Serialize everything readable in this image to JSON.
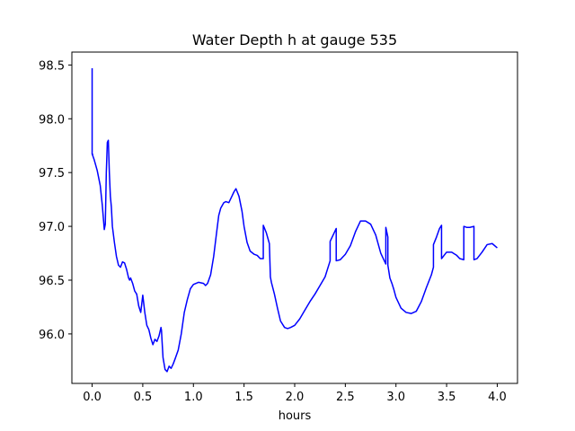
{
  "chart_data": {
    "type": "line",
    "title": "Water Depth h at gauge 535",
    "xlabel": "hours",
    "ylabel": "",
    "xlim": [
      -0.2,
      4.2
    ],
    "ylim": [
      95.54,
      98.62
    ],
    "xticks": [
      0.0,
      0.5,
      1.0,
      1.5,
      2.0,
      2.5,
      3.0,
      3.5,
      4.0
    ],
    "xtick_labels": [
      "0.0",
      "0.5",
      "1.0",
      "1.5",
      "2.0",
      "2.5",
      "3.0",
      "3.5",
      "4.0"
    ],
    "yticks": [
      96.0,
      96.5,
      97.0,
      97.5,
      98.0,
      98.5
    ],
    "ytick_labels": [
      "96.0",
      "96.5",
      "97.0",
      "97.5",
      "98.0",
      "98.5"
    ],
    "grid": false,
    "line_color": "#0000ff",
    "series": [
      {
        "x": [
          0.0,
          0.0,
          0.005,
          0.005,
          0.02,
          0.05,
          0.08,
          0.1,
          0.12,
          0.13,
          0.14,
          0.15,
          0.16,
          0.17,
          0.18,
          0.19,
          0.2,
          0.22,
          0.24,
          0.26,
          0.28,
          0.3,
          0.32,
          0.34,
          0.36,
          0.37,
          0.38,
          0.4,
          0.42,
          0.44,
          0.46,
          0.48,
          0.5,
          0.52,
          0.54,
          0.56,
          0.58,
          0.6,
          0.62,
          0.64,
          0.66,
          0.68,
          0.685,
          0.69,
          0.7,
          0.72,
          0.74,
          0.76,
          0.78,
          0.8,
          0.82,
          0.85,
          0.88,
          0.91,
          0.94,
          0.97,
          1.0,
          1.05,
          1.1,
          1.12,
          1.14,
          1.17,
          1.2,
          1.23,
          1.25,
          1.27,
          1.3,
          1.32,
          1.35,
          1.38,
          1.4,
          1.42,
          1.45,
          1.48,
          1.5,
          1.53,
          1.56,
          1.6,
          1.63,
          1.66,
          1.69,
          1.69,
          1.72,
          1.75,
          1.76,
          1.77,
          1.8,
          1.83,
          1.86,
          1.9,
          1.93,
          1.96,
          2.0,
          2.05,
          2.1,
          2.15,
          2.2,
          2.25,
          2.3,
          2.35,
          2.35,
          2.38,
          2.41,
          2.41,
          2.45,
          2.5,
          2.55,
          2.6,
          2.65,
          2.7,
          2.75,
          2.8,
          2.85,
          2.9,
          2.9,
          2.92,
          2.92,
          2.94,
          2.96,
          2.98,
          3.0,
          3.05,
          3.1,
          3.15,
          3.2,
          3.25,
          3.3,
          3.35,
          3.37,
          3.37,
          3.4,
          3.43,
          3.45,
          3.45,
          3.5,
          3.55,
          3.6,
          3.63,
          3.67,
          3.67,
          3.7,
          3.73,
          3.77,
          3.77,
          3.8,
          3.85,
          3.9,
          3.95,
          4.0
        ],
        "y": [
          98.47,
          97.67,
          97.67,
          97.66,
          97.62,
          97.52,
          97.38,
          97.2,
          96.97,
          97.02,
          97.5,
          97.78,
          97.8,
          97.5,
          97.28,
          97.18,
          97.0,
          96.85,
          96.72,
          96.64,
          96.62,
          96.67,
          96.66,
          96.6,
          96.52,
          96.5,
          96.52,
          96.47,
          96.4,
          96.37,
          96.26,
          96.2,
          96.36,
          96.2,
          96.08,
          96.04,
          95.96,
          95.9,
          95.95,
          95.93,
          95.98,
          96.06,
          96.03,
          95.94,
          95.78,
          95.67,
          95.65,
          95.7,
          95.68,
          95.72,
          95.77,
          95.85,
          96.0,
          96.2,
          96.32,
          96.42,
          96.46,
          96.48,
          96.47,
          96.45,
          96.47,
          96.55,
          96.72,
          96.95,
          97.1,
          97.17,
          97.22,
          97.23,
          97.22,
          97.28,
          97.32,
          97.35,
          97.28,
          97.14,
          97.0,
          96.85,
          96.77,
          96.74,
          96.73,
          96.7,
          96.7,
          97.01,
          96.94,
          96.84,
          96.53,
          96.48,
          96.37,
          96.24,
          96.12,
          96.06,
          96.05,
          96.06,
          96.08,
          96.14,
          96.22,
          96.3,
          96.37,
          96.45,
          96.53,
          96.68,
          96.86,
          96.92,
          96.98,
          96.68,
          96.69,
          96.74,
          96.82,
          96.95,
          97.05,
          97.05,
          97.02,
          96.92,
          96.75,
          96.65,
          96.99,
          96.9,
          96.64,
          96.52,
          96.47,
          96.41,
          96.34,
          96.24,
          96.2,
          96.19,
          96.21,
          96.3,
          96.43,
          96.55,
          96.62,
          96.83,
          96.9,
          96.98,
          97.01,
          96.7,
          96.76,
          96.76,
          96.73,
          96.7,
          96.69,
          97.0,
          96.99,
          96.99,
          97.0,
          96.69,
          96.7,
          96.76,
          96.83,
          96.84,
          96.8
        ]
      }
    ]
  }
}
